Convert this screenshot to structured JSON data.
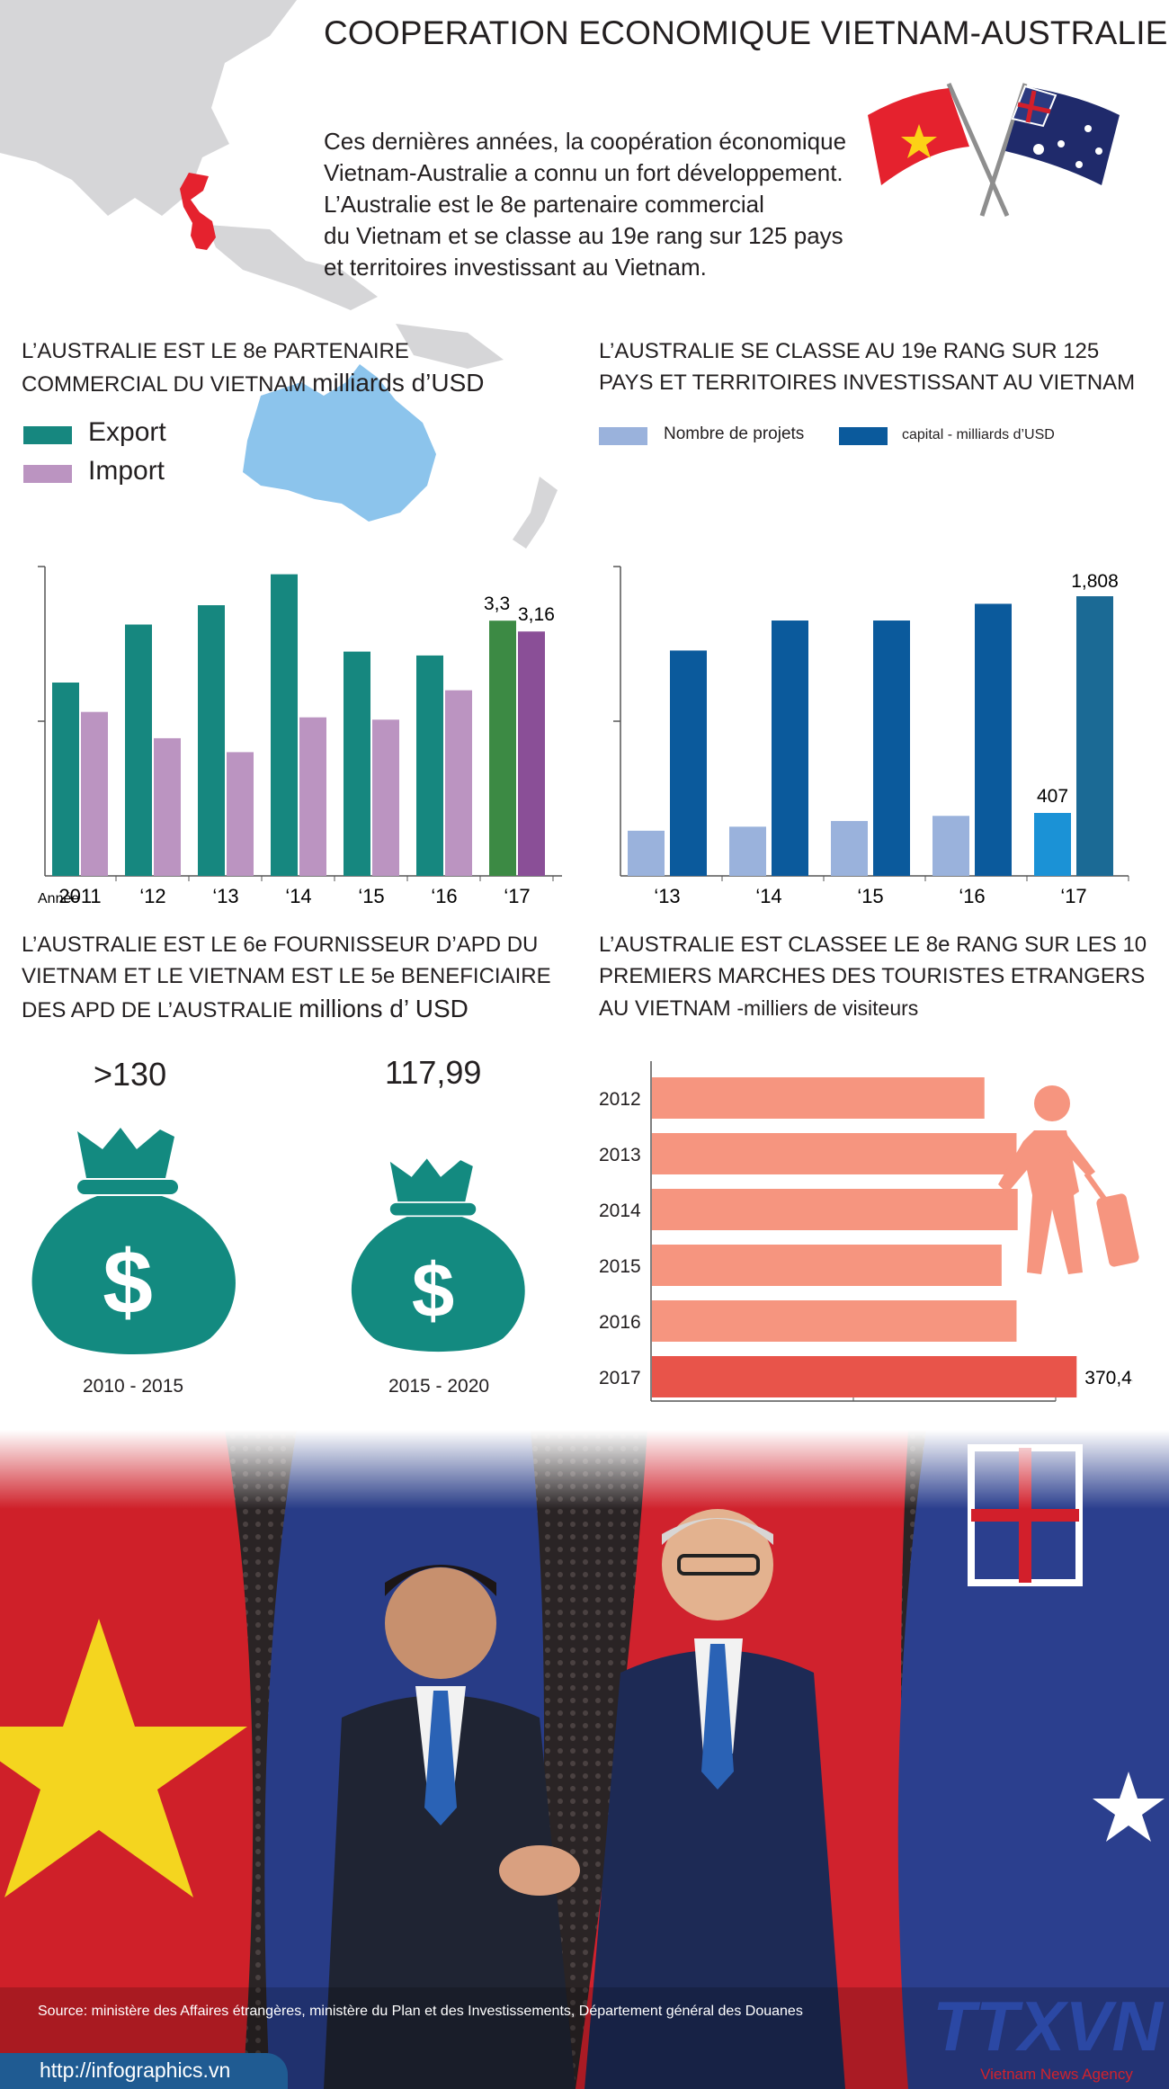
{
  "header": {
    "title": "COOPERATION ECONOMIQUE VIETNAM-AUSTRALIE",
    "intro_lines": [
      "Ces dernières années, la coopération économique",
      "Vietnam-Australie a connu un fort développement.",
      "L’Australie est le 8e partenaire commercial",
      "du Vietnam et se classe au 19e rang sur 125 pays",
      "et territoires investissant au Vietnam."
    ]
  },
  "colors": {
    "export": "#16877f",
    "import": "#bb94c1",
    "export_highlight": "#3c8a44",
    "import_highlight": "#8a4f97",
    "projects": "#9ab2dc",
    "capital": "#0b5a9c",
    "projects_highlight": "#1b92d6",
    "capital_highlight": "#1b6a95",
    "tourists": "#f6957f",
    "tourists_highlight": "#e8544a",
    "money_bag": "#138a80",
    "map_land": "#d6d6d8",
    "australia": "#8cc4ec",
    "vietnam": "#e5222e"
  },
  "chart_data": [
    {
      "type": "bar",
      "title_lines": [
        "L’AUSTRALIE EST LE 8e PARTENAIRE",
        "COMMERCIAL DU VIETNAM"
      ],
      "unit": "milliards d’USD",
      "x_prefix": "Année",
      "categories": [
        "2011",
        "‘12",
        "‘13",
        "‘14",
        "‘15",
        "‘16",
        "‘17"
      ],
      "ylim": [
        0,
        4
      ],
      "series": [
        {
          "name": "Export",
          "values": [
            2.5,
            3.25,
            3.5,
            3.9,
            2.9,
            2.85,
            3.3
          ]
        },
        {
          "name": "Import",
          "values": [
            2.12,
            1.78,
            1.6,
            2.05,
            2.02,
            2.4,
            3.16
          ]
        }
      ],
      "data_labels": {
        "Export": {
          "6": "3,3"
        },
        "Import": {
          "6": "3,16"
        }
      }
    },
    {
      "type": "bar",
      "title_lines": [
        "L’AUSTRALIE  SE CLASSE AU 19e RANG SUR 125",
        "PAYS ET TERRITOIRES INVESTISSANT AU VIETNAM"
      ],
      "categories": [
        "‘13",
        "‘14",
        "‘15",
        "‘16",
        "‘17"
      ],
      "ylim": [
        0,
        2000
      ],
      "series": [
        {
          "name": "Nombre de projets",
          "values": [
            292,
            318,
            355,
            388,
            407
          ]
        },
        {
          "name": "capital - milliards d’USD",
          "values": [
            1457,
            1651,
            1651,
            1759,
            1808
          ]
        }
      ],
      "data_labels": {
        "Nombre de projets": {
          "4": "407"
        },
        "capital - milliards d’USD": {
          "4": "1,808"
        }
      }
    },
    {
      "type": "table",
      "title_lines": [
        "L’AUSTRALIE EST LE 6e FOURNISSEUR D’APD DU",
        "VIETNAM ET LE VIETNAM EST LE 5e BENEFICIAIRE",
        "DES APD DE L’AUSTRALIE"
      ],
      "unit": "millions d’ USD",
      "items": [
        {
          "value": ">130",
          "period": "2010 - 2015"
        },
        {
          "value": "117,99",
          "period": "2015 - 2020"
        }
      ]
    },
    {
      "type": "bar",
      "orientation": "horizontal",
      "title_lines": [
        "L’AUSTRALIE EST CLASSEE LE 8e RANG SUR LES 10",
        "PREMIERS MARCHES DES TOURISTES ETRANGERS",
        "AU VIETNAM"
      ],
      "unit": "milliers de visiteurs",
      "categories": [
        "2012",
        "2013",
        "2014",
        "2015",
        "2016",
        "2017"
      ],
      "xlim": [
        0,
        400
      ],
      "values": [
        290,
        318,
        319,
        305,
        318,
        370.43
      ],
      "data_labels": {
        "5": "370,43"
      }
    }
  ],
  "footer": {
    "source": "Source: ministère des Affaires étrangères, ministère du Plan et des Investissements, Département général des Douanes",
    "url": "http://infographics.vn",
    "logo": "TTXVN",
    "logo_sub": "Vietnam News Agency"
  }
}
